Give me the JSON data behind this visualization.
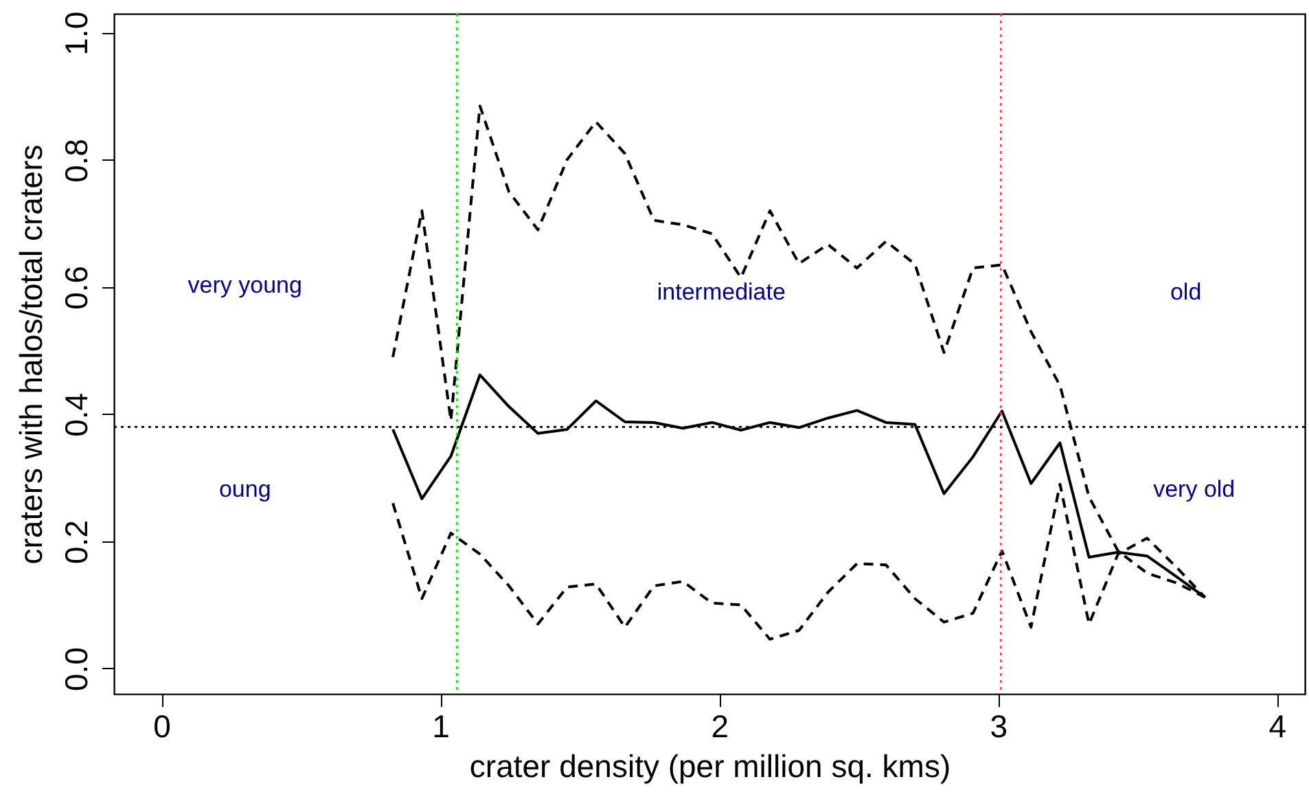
{
  "chart_data": {
    "type": "line",
    "xlabel": "crater density (per million sq. kms)",
    "ylabel": "craters with halos/total craters",
    "x": [
      0.83,
      0.934,
      1.038,
      1.142,
      1.246,
      1.35,
      1.454,
      1.558,
      1.662,
      1.766,
      1.87,
      1.974,
      2.078,
      2.182,
      2.286,
      2.39,
      2.494,
      2.598,
      2.702,
      2.806,
      2.91,
      3.014,
      3.118,
      3.222,
      3.326,
      3.43,
      3.534,
      3.638,
      3.742
    ],
    "series": [
      {
        "color": "#000000",
        "line_style": "solid",
        "values": [
          0.376,
          0.267,
          0.334,
          0.462,
          0.412,
          0.37,
          0.376,
          0.421,
          0.388,
          0.387,
          0.378,
          0.387,
          0.375,
          0.387,
          0.379,
          0.394,
          0.406,
          0.387,
          0.384,
          0.275,
          0.333,
          0.405,
          0.291,
          0.355,
          0.175,
          0.183,
          0.177,
          0.145,
          0.112
        ]
      },
      {
        "color": "#000000",
        "line_style": "dashed",
        "values": [
          0.49,
          0.72,
          0.39,
          0.885,
          0.75,
          0.69,
          0.8,
          0.86,
          0.81,
          0.705,
          0.698,
          0.684,
          0.615,
          0.72,
          0.637,
          0.667,
          0.63,
          0.672,
          0.636,
          0.497,
          0.63,
          0.635,
          0.53,
          0.445,
          0.27,
          0.185,
          0.15,
          0.135,
          0.112
        ]
      },
      {
        "color": "#000000",
        "line_style": "dashed",
        "values": [
          0.26,
          0.11,
          0.213,
          0.18,
          0.13,
          0.07,
          0.128,
          0.133,
          0.065,
          0.13,
          0.137,
          0.103,
          0.1,
          0.046,
          0.06,
          0.12,
          0.165,
          0.163,
          0.11,
          0.073,
          0.087,
          0.185,
          0.065,
          0.29,
          0.07,
          0.18,
          0.205,
          0.16,
          0.112
        ]
      }
    ],
    "xlim": [
      -0.17,
      4.1
    ],
    "ylim": [
      -0.04,
      1.03
    ],
    "xticks": [
      0,
      1,
      2,
      3,
      4
    ],
    "yticks": [
      {
        "value": 0,
        "label": "0.0"
      },
      {
        "value": 0.2,
        "label": "0.2"
      },
      {
        "value": 0.4,
        "label": "0.4"
      },
      {
        "value": 0.6,
        "label": "0.6"
      },
      {
        "value": 0.8,
        "label": "0.8"
      },
      {
        "value": 1,
        "label": "1.0"
      }
    ],
    "ref_lines": [
      {
        "axis": "x",
        "value": 1.06,
        "color": "#00e000",
        "line_style": "dotted"
      },
      {
        "axis": "x",
        "value": 3.01,
        "color": "#ff4040",
        "line_style": "dotted"
      },
      {
        "axis": "y",
        "value": 0.38,
        "color": "#000000",
        "line_style": "dotted"
      }
    ],
    "annotations": [
      "very young",
      "oung",
      "intermediate",
      "old",
      "very old"
    ],
    "grid": false
  }
}
